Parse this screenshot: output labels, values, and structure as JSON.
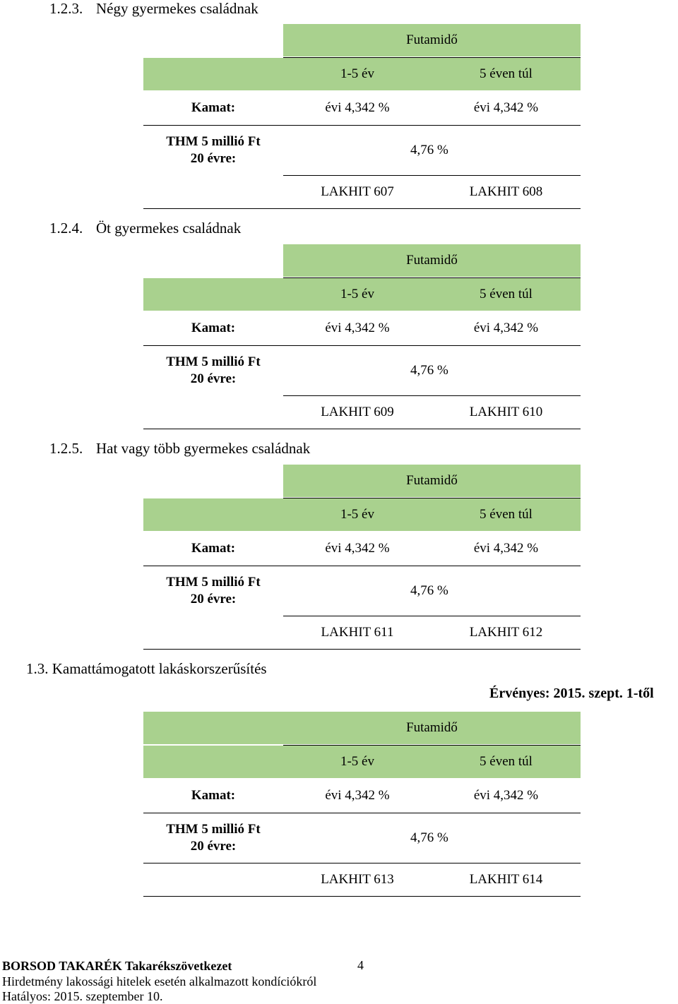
{
  "sections": [
    {
      "number": "1.2.3.",
      "title": "Négy gyermekes családnak",
      "futamido": "Futamidő",
      "col1": "1-5 év",
      "col2": "5 éven túl",
      "kamat_label": "Kamat:",
      "kamat_1": "évi 4,342 %",
      "kamat_2": "évi 4,342 %",
      "thm_label_1": "THM 5 millió Ft",
      "thm_label_2": "20 évre:",
      "thm_value": "4,76 %",
      "code_1": "LAKHIT 607",
      "code_2": "LAKHIT 608"
    },
    {
      "number": "1.2.4.",
      "title": "Öt gyermekes családnak",
      "futamido": "Futamidő",
      "col1": "1-5 év",
      "col2": "5 éven túl",
      "kamat_label": "Kamat:",
      "kamat_1": "évi 4,342 %",
      "kamat_2": "évi 4,342 %",
      "thm_label_1": "THM 5 millió Ft",
      "thm_label_2": "20 évre:",
      "thm_value": "4,76 %",
      "code_1": "LAKHIT 609",
      "code_2": "LAKHIT 610"
    },
    {
      "number": "1.2.5.",
      "title": "Hat vagy több gyermekes családnak",
      "futamido": "Futamidő",
      "col1": "1-5 év",
      "col2": "5 éven túl",
      "kamat_label": "Kamat:",
      "kamat_1": "évi 4,342 %",
      "kamat_2": "évi 4,342 %",
      "thm_label_1": "THM 5 millió Ft",
      "thm_label_2": "20 évre:",
      "thm_value": "4,76 %",
      "code_1": "LAKHIT 611",
      "code_2": "LAKHIT 612"
    },
    {
      "number": "1.3.",
      "title": "Kamattámogatott lakáskorszerűsítés",
      "futamido": "Futamidő",
      "col1": "1-5 év",
      "col2": "5 éven túl",
      "kamat_label": "Kamat:",
      "kamat_1": "évi 4,342 %",
      "kamat_2": "évi 4,342 %",
      "thm_label_1": "THM 5 millió Ft",
      "thm_label_2": "20 évre:",
      "thm_value": "4,76 %",
      "code_1": "LAKHIT 613",
      "code_2": "LAKHIT 614"
    }
  ],
  "valid_from": "Érvényes: 2015. szept. 1-től",
  "footer": {
    "bank": "BORSOD TAKARÉK Takarékszövetkezet",
    "notice": "Hirdetmény lakossági hitelek esetén alkalmazott kondíciókról",
    "effective": "Hatályos: 2015. szeptember 10.",
    "page": "4"
  }
}
